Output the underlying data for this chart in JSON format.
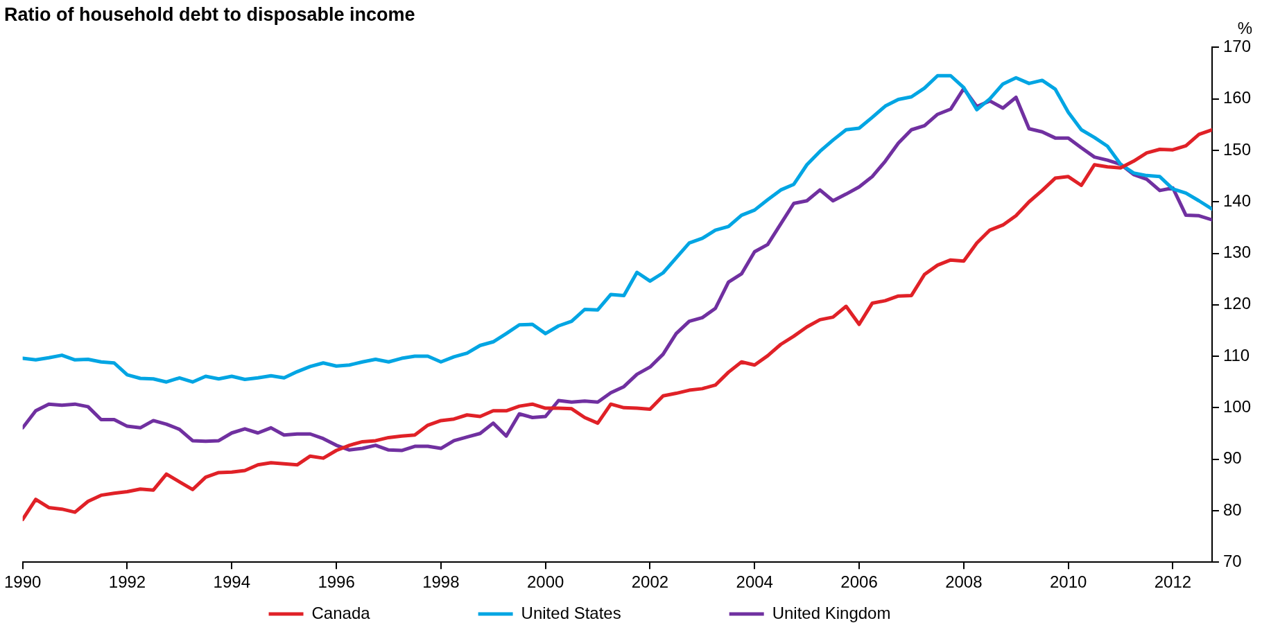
{
  "chart_data": {
    "type": "line",
    "title": "Ratio of household debt to disposable income",
    "ylabel": "%",
    "x": [
      1990,
      1990.25,
      1990.5,
      1990.75,
      1991,
      1991.25,
      1991.5,
      1991.75,
      1992,
      1992.25,
      1992.5,
      1992.75,
      1993,
      1993.25,
      1993.5,
      1993.75,
      1994,
      1994.25,
      1994.5,
      1994.75,
      1995,
      1995.25,
      1995.5,
      1995.75,
      1996,
      1996.25,
      1996.5,
      1996.75,
      1997,
      1997.25,
      1997.5,
      1997.75,
      1998,
      1998.25,
      1998.5,
      1998.75,
      1999,
      1999.25,
      1999.5,
      1999.75,
      2000,
      2000.25,
      2000.5,
      2000.75,
      2001,
      2001.25,
      2001.5,
      2001.75,
      2002,
      2002.25,
      2002.5,
      2002.75,
      2003,
      2003.25,
      2003.5,
      2003.75,
      2004,
      2004.25,
      2004.5,
      2004.75,
      2005,
      2005.25,
      2005.5,
      2005.75,
      2006,
      2006.25,
      2006.5,
      2006.75,
      2007,
      2007.25,
      2007.5,
      2007.75,
      2008,
      2008.25,
      2008.5,
      2008.75,
      2009,
      2009.25,
      2009.5,
      2009.75,
      2010,
      2010.25,
      2010.5,
      2010.75,
      2011,
      2011.25,
      2011.5,
      2011.75,
      2012,
      2012.25,
      2012.5,
      2012.75
    ],
    "series": [
      {
        "name": "Canada",
        "color": "#e02127",
        "values": [
          78.3,
          82.2,
          80.6,
          80.3,
          79.7,
          81.8,
          83.0,
          83.4,
          83.7,
          84.2,
          84.0,
          87.1,
          85.6,
          84.1,
          86.5,
          87.4,
          87.5,
          87.8,
          88.9,
          89.3,
          89.1,
          88.9,
          90.6,
          90.2,
          91.7,
          92.7,
          93.4,
          93.6,
          94.2,
          94.5,
          94.7,
          96.6,
          97.5,
          97.8,
          98.6,
          98.3,
          99.4,
          99.4,
          100.3,
          100.7,
          99.9,
          99.9,
          99.8,
          98.1,
          97.0,
          100.7,
          100.0,
          99.9,
          99.7,
          102.3,
          102.8,
          103.4,
          103.7,
          104.4,
          106.9,
          108.9,
          108.3,
          110.1,
          112.3,
          113.9,
          115.7,
          117.1,
          117.6,
          119.7,
          116.2,
          120.3,
          120.8,
          121.7,
          121.8,
          125.9,
          127.7,
          128.7,
          128.5,
          132.0,
          134.5,
          135.5,
          137.3,
          140.0,
          142.2,
          144.6,
          144.9,
          143.2,
          147.2,
          146.8,
          146.6,
          147.9,
          149.5,
          150.2,
          150.1,
          150.9,
          153.1,
          154.0
        ]
      },
      {
        "name": "United States",
        "color": "#00a5e3",
        "values": [
          109.6,
          109.3,
          109.7,
          110.2,
          109.3,
          109.4,
          108.9,
          108.7,
          106.4,
          105.7,
          105.6,
          105.0,
          105.8,
          105.0,
          106.1,
          105.6,
          106.1,
          105.5,
          105.8,
          106.2,
          105.8,
          107.0,
          108.0,
          108.7,
          108.1,
          108.3,
          108.9,
          109.4,
          108.9,
          109.6,
          110.0,
          110.0,
          108.9,
          109.9,
          110.6,
          112.1,
          112.8,
          114.4,
          116.1,
          116.2,
          114.4,
          115.9,
          116.8,
          119.1,
          119.0,
          122.0,
          121.8,
          126.3,
          124.6,
          126.2,
          129.1,
          132.0,
          132.9,
          134.5,
          135.2,
          137.4,
          138.4,
          140.4,
          142.3,
          143.4,
          147.2,
          149.8,
          152.0,
          154.0,
          154.3,
          156.4,
          158.6,
          159.9,
          160.4,
          162.1,
          164.5,
          164.5,
          162.2,
          157.9,
          160.0,
          162.9,
          164.1,
          163.0,
          163.6,
          161.9,
          157.4,
          154.0,
          152.5,
          150.8,
          147.3,
          145.6,
          145.1,
          144.9,
          142.5,
          141.7,
          140.2,
          138.6
        ]
      },
      {
        "name": "United Kingdom",
        "color": "#7030a0",
        "values": [
          96.1,
          99.4,
          100.7,
          100.5,
          100.7,
          100.2,
          97.7,
          97.7,
          96.4,
          96.1,
          97.5,
          96.8,
          95.8,
          93.6,
          93.5,
          93.6,
          95.1,
          95.9,
          95.1,
          96.1,
          94.7,
          94.9,
          94.9,
          94.0,
          92.7,
          91.8,
          92.1,
          92.7,
          91.8,
          91.7,
          92.5,
          92.5,
          92.1,
          93.6,
          94.3,
          95.0,
          97.0,
          94.5,
          98.8,
          98.1,
          98.3,
          101.4,
          101.1,
          101.3,
          101.1,
          102.9,
          104.1,
          106.5,
          107.9,
          110.4,
          114.4,
          116.8,
          117.5,
          119.3,
          124.4,
          126.0,
          130.3,
          131.7,
          135.7,
          139.7,
          140.2,
          142.3,
          140.2,
          141.5,
          142.9,
          144.9,
          147.9,
          151.4,
          154.0,
          154.8,
          157.0,
          158.0,
          162.0,
          158.5,
          159.6,
          158.2,
          160.3,
          154.2,
          153.6,
          152.4,
          152.4,
          150.5,
          148.7,
          148.1,
          147.3,
          145.3,
          144.4,
          142.2,
          142.7,
          137.4,
          137.3,
          136.5
        ]
      }
    ],
    "xlim": [
      1990,
      2012.75
    ],
    "xticks": [
      1990,
      1992,
      1994,
      1996,
      1998,
      2000,
      2002,
      2004,
      2006,
      2008,
      2010,
      2012
    ],
    "ylim": [
      70,
      170
    ],
    "yticks": [
      70,
      80,
      90,
      100,
      110,
      120,
      130,
      140,
      150,
      160,
      170
    ],
    "grid": false,
    "legend": "bottom",
    "marker": "none",
    "line_style": "solid"
  }
}
